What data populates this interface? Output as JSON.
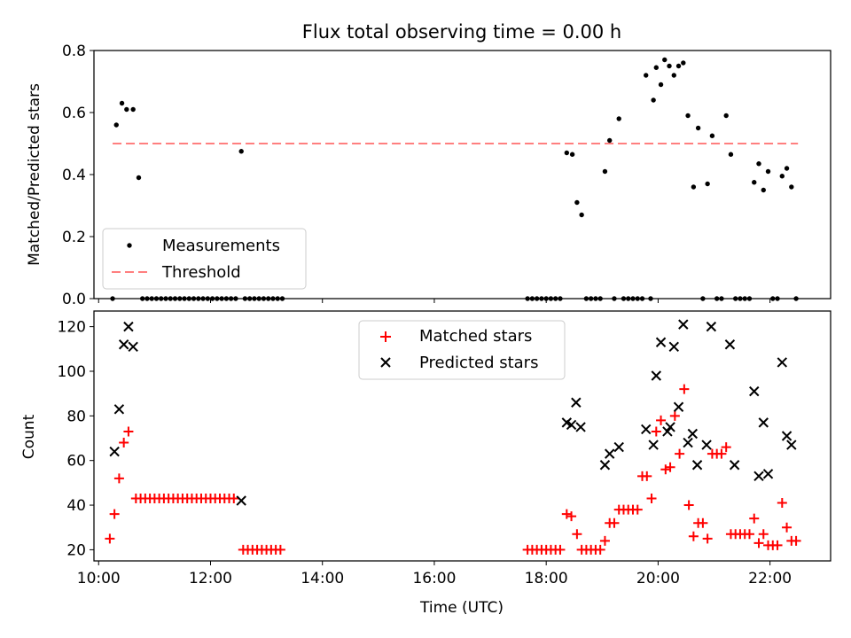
{
  "chart_data": [
    {
      "type": "scatter",
      "title": "Flux total observing time = 0.00 h",
      "ylabel": "Matched/Predicted stars",
      "xlabel": "",
      "xlim": [
        "09:55",
        "23:05"
      ],
      "ylim": [
        0,
        0.8
      ],
      "yticks": [
        0.0,
        0.2,
        0.4,
        0.6,
        0.8
      ],
      "ytick_labels": [
        "0.0",
        "0.2",
        "0.4",
        "0.6",
        "0.8"
      ],
      "xticks": [
        "10:00",
        "12:00",
        "14:00",
        "16:00",
        "18:00",
        "20:00",
        "22:00"
      ],
      "legend_position": "lower-left",
      "legend": [
        "Measurements",
        "Threshold"
      ],
      "colors": {
        "measurements": "#000000",
        "threshold": "#ff7f7f"
      },
      "threshold": {
        "y": 0.5,
        "x_start": "10:15",
        "x_end": "22:30"
      },
      "series": [
        {
          "name": "Measurements",
          "points": [
            [
              "10:15",
              0.0
            ],
            [
              "10:19",
              0.56
            ],
            [
              "10:25",
              0.63
            ],
            [
              "10:30",
              0.61
            ],
            [
              "10:37",
              0.61
            ],
            [
              "10:43",
              0.39
            ],
            [
              "10:47",
              0.0
            ],
            [
              "10:52",
              0.0
            ],
            [
              "10:57",
              0.0
            ],
            [
              "11:02",
              0.0
            ],
            [
              "11:07",
              0.0
            ],
            [
              "11:12",
              0.0
            ],
            [
              "11:17",
              0.0
            ],
            [
              "11:22",
              0.0
            ],
            [
              "11:27",
              0.0
            ],
            [
              "11:32",
              0.0
            ],
            [
              "11:37",
              0.0
            ],
            [
              "11:42",
              0.0
            ],
            [
              "11:47",
              0.0
            ],
            [
              "11:52",
              0.0
            ],
            [
              "11:57",
              0.0
            ],
            [
              "12:02",
              0.0
            ],
            [
              "12:07",
              0.0
            ],
            [
              "12:12",
              0.0
            ],
            [
              "12:17",
              0.0
            ],
            [
              "12:22",
              0.0
            ],
            [
              "12:27",
              0.0
            ],
            [
              "12:33",
              0.475
            ],
            [
              "12:37",
              0.0
            ],
            [
              "12:42",
              0.0
            ],
            [
              "12:47",
              0.0
            ],
            [
              "12:52",
              0.0
            ],
            [
              "12:57",
              0.0
            ],
            [
              "13:02",
              0.0
            ],
            [
              "13:07",
              0.0
            ],
            [
              "13:12",
              0.0
            ],
            [
              "13:17",
              0.0
            ],
            [
              "17:40",
              0.0
            ],
            [
              "17:45",
              0.0
            ],
            [
              "17:50",
              0.0
            ],
            [
              "17:55",
              0.0
            ],
            [
              "18:00",
              0.0
            ],
            [
              "18:05",
              0.0
            ],
            [
              "18:10",
              0.0
            ],
            [
              "18:15",
              0.0
            ],
            [
              "18:22",
              0.47
            ],
            [
              "18:28",
              0.465
            ],
            [
              "18:33",
              0.31
            ],
            [
              "18:38",
              0.27
            ],
            [
              "18:43",
              0.0
            ],
            [
              "18:48",
              0.0
            ],
            [
              "18:53",
              0.0
            ],
            [
              "18:58",
              0.0
            ],
            [
              "19:03",
              0.41
            ],
            [
              "19:08",
              0.51
            ],
            [
              "19:13",
              0.0
            ],
            [
              "19:18",
              0.58
            ],
            [
              "19:23",
              0.0
            ],
            [
              "19:28",
              0.0
            ],
            [
              "19:33",
              0.0
            ],
            [
              "19:38",
              0.0
            ],
            [
              "19:43",
              0.0
            ],
            [
              "19:47",
              0.72
            ],
            [
              "19:52",
              0.0
            ],
            [
              "19:55",
              0.64
            ],
            [
              "19:58",
              0.745
            ],
            [
              "20:03",
              0.69
            ],
            [
              "20:07",
              0.77
            ],
            [
              "20:12",
              0.75
            ],
            [
              "20:17",
              0.72
            ],
            [
              "20:22",
              0.75
            ],
            [
              "20:27",
              0.76
            ],
            [
              "20:32",
              0.59
            ],
            [
              "20:38",
              0.36
            ],
            [
              "20:43",
              0.55
            ],
            [
              "20:48",
              0.0
            ],
            [
              "20:53",
              0.37
            ],
            [
              "20:58",
              0.525
            ],
            [
              "21:03",
              0.0
            ],
            [
              "21:08",
              0.0
            ],
            [
              "21:13",
              0.59
            ],
            [
              "21:18",
              0.465
            ],
            [
              "21:23",
              0.0
            ],
            [
              "21:28",
              0.0
            ],
            [
              "21:33",
              0.0
            ],
            [
              "21:38",
              0.0
            ],
            [
              "21:43",
              0.375
            ],
            [
              "21:48",
              0.435
            ],
            [
              "21:53",
              0.35
            ],
            [
              "21:58",
              0.41
            ],
            [
              "22:03",
              0.0
            ],
            [
              "22:08",
              0.0
            ],
            [
              "22:13",
              0.395
            ],
            [
              "22:18",
              0.42
            ],
            [
              "22:23",
              0.36
            ],
            [
              "22:28",
              0.0
            ]
          ]
        }
      ]
    },
    {
      "type": "scatter",
      "title": "",
      "xlabel": "Time (UTC)",
      "ylabel": "Count",
      "xlim": [
        "09:55",
        "23:05"
      ],
      "ylim": [
        15,
        127
      ],
      "yticks": [
        20,
        40,
        60,
        80,
        100,
        120
      ],
      "ytick_labels": [
        "20",
        "40",
        "60",
        "80",
        "100",
        "120"
      ],
      "xticks": [
        "10:00",
        "12:00",
        "14:00",
        "16:00",
        "18:00",
        "20:00",
        "22:00"
      ],
      "xtick_labels": [
        "10:00",
        "12:00",
        "14:00",
        "16:00",
        "18:00",
        "20:00",
        "22:00"
      ],
      "legend_position": "upper-center",
      "legend": [
        "Matched stars",
        "Predicted stars"
      ],
      "colors": {
        "matched": "#ff0000",
        "predicted": "#000000"
      },
      "series": [
        {
          "name": "Matched stars",
          "points": [
            [
              "10:12",
              25
            ],
            [
              "10:17",
              36
            ],
            [
              "10:22",
              52
            ],
            [
              "10:27",
              68
            ],
            [
              "10:32",
              73
            ],
            [
              "10:40",
              43
            ],
            [
              "10:45",
              43
            ],
            [
              "10:50",
              43
            ],
            [
              "10:55",
              43
            ],
            [
              "11:00",
              43
            ],
            [
              "11:05",
              43
            ],
            [
              "11:10",
              43
            ],
            [
              "11:15",
              43
            ],
            [
              "11:20",
              43
            ],
            [
              "11:25",
              43
            ],
            [
              "11:30",
              43
            ],
            [
              "11:35",
              43
            ],
            [
              "11:40",
              43
            ],
            [
              "11:45",
              43
            ],
            [
              "11:50",
              43
            ],
            [
              "11:55",
              43
            ],
            [
              "12:00",
              43
            ],
            [
              "12:05",
              43
            ],
            [
              "12:10",
              43
            ],
            [
              "12:15",
              43
            ],
            [
              "12:20",
              43
            ],
            [
              "12:25",
              43
            ],
            [
              "12:35",
              20
            ],
            [
              "12:40",
              20
            ],
            [
              "12:45",
              20
            ],
            [
              "12:50",
              20
            ],
            [
              "12:55",
              20
            ],
            [
              "13:00",
              20
            ],
            [
              "13:05",
              20
            ],
            [
              "13:10",
              20
            ],
            [
              "13:15",
              20
            ],
            [
              "17:40",
              20
            ],
            [
              "17:45",
              20
            ],
            [
              "17:50",
              20
            ],
            [
              "17:55",
              20
            ],
            [
              "18:00",
              20
            ],
            [
              "18:05",
              20
            ],
            [
              "18:10",
              20
            ],
            [
              "18:15",
              20
            ],
            [
              "18:22",
              36
            ],
            [
              "18:27",
              35
            ],
            [
              "18:33",
              27
            ],
            [
              "18:38",
              20
            ],
            [
              "18:43",
              20
            ],
            [
              "18:48",
              20
            ],
            [
              "18:53",
              20
            ],
            [
              "18:58",
              20
            ],
            [
              "19:03",
              24
            ],
            [
              "19:08",
              32
            ],
            [
              "19:13",
              32
            ],
            [
              "19:18",
              38
            ],
            [
              "19:23",
              38
            ],
            [
              "19:28",
              38
            ],
            [
              "19:33",
              38
            ],
            [
              "19:38",
              38
            ],
            [
              "19:43",
              53
            ],
            [
              "19:48",
              53
            ],
            [
              "19:53",
              43
            ],
            [
              "19:58",
              73
            ],
            [
              "20:03",
              78
            ],
            [
              "20:08",
              56
            ],
            [
              "20:13",
              57
            ],
            [
              "20:18",
              80
            ],
            [
              "20:23",
              63
            ],
            [
              "20:28",
              92
            ],
            [
              "20:33",
              40
            ],
            [
              "20:38",
              26
            ],
            [
              "20:43",
              32
            ],
            [
              "20:48",
              32
            ],
            [
              "20:53",
              25
            ],
            [
              "20:58",
              63
            ],
            [
              "21:03",
              63
            ],
            [
              "21:08",
              63
            ],
            [
              "21:13",
              66
            ],
            [
              "21:18",
              27
            ],
            [
              "21:23",
              27
            ],
            [
              "21:28",
              27
            ],
            [
              "21:33",
              27
            ],
            [
              "21:38",
              27
            ],
            [
              "21:43",
              34
            ],
            [
              "21:48",
              23
            ],
            [
              "21:53",
              27
            ],
            [
              "21:58",
              22
            ],
            [
              "22:03",
              22
            ],
            [
              "22:08",
              22
            ],
            [
              "22:13",
              41
            ],
            [
              "22:18",
              30
            ],
            [
              "22:23",
              24
            ],
            [
              "22:28",
              24
            ]
          ]
        },
        {
          "name": "Predicted stars",
          "points": [
            [
              "10:17",
              64
            ],
            [
              "10:22",
              83
            ],
            [
              "10:27",
              112
            ],
            [
              "10:32",
              120
            ],
            [
              "10:37",
              111
            ],
            [
              "12:33",
              42
            ],
            [
              "18:22",
              77
            ],
            [
              "18:27",
              76
            ],
            [
              "18:32",
              86
            ],
            [
              "18:37",
              75
            ],
            [
              "19:03",
              58
            ],
            [
              "19:08",
              63
            ],
            [
              "19:18",
              66
            ],
            [
              "19:47",
              74
            ],
            [
              "19:55",
              67
            ],
            [
              "19:58",
              98
            ],
            [
              "20:03",
              113
            ],
            [
              "20:10",
              73
            ],
            [
              "20:13",
              75
            ],
            [
              "20:17",
              111
            ],
            [
              "20:22",
              84
            ],
            [
              "20:27",
              121
            ],
            [
              "20:32",
              68
            ],
            [
              "20:37",
              72
            ],
            [
              "20:42",
              58
            ],
            [
              "20:52",
              67
            ],
            [
              "20:57",
              120
            ],
            [
              "21:17",
              112
            ],
            [
              "21:22",
              58
            ],
            [
              "21:43",
              91
            ],
            [
              "21:48",
              53
            ],
            [
              "21:53",
              77
            ],
            [
              "21:58",
              54
            ],
            [
              "22:13",
              104
            ],
            [
              "22:18",
              71
            ],
            [
              "22:23",
              67
            ]
          ]
        }
      ]
    }
  ]
}
